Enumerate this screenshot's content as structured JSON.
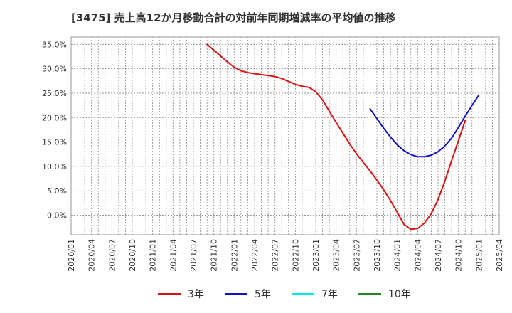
{
  "chart_data": {
    "type": "line",
    "title": "[3475]  売上高12か月移動合計の対前年同期増減率の平均値の推移",
    "xlabel": "",
    "ylabel": "",
    "ylim": [
      -4,
      36.5
    ],
    "xlim": [
      "2020/01",
      "2025/04"
    ],
    "y_ticks": [
      "35.0%",
      "30.0%",
      "25.0%",
      "20.0%",
      "15.0%",
      "10.0%",
      "5.0%",
      "0.0%"
    ],
    "y_tick_values": [
      35,
      30,
      25,
      20,
      15,
      10,
      5,
      0
    ],
    "x_ticks": [
      "2020/01",
      "2020/04",
      "2020/07",
      "2020/10",
      "2021/01",
      "2021/04",
      "2021/07",
      "2021/10",
      "2022/01",
      "2022/04",
      "2022/07",
      "2022/10",
      "2023/01",
      "2023/04",
      "2023/07",
      "2023/10",
      "2024/01",
      "2024/04",
      "2024/07",
      "2024/10",
      "2025/01",
      "2025/04"
    ],
    "grid": true,
    "legend_position": "bottom",
    "series": [
      {
        "name": "3年",
        "color": "#dd1111",
        "x": [
          "2021/09",
          "2021/10",
          "2021/11",
          "2021/12",
          "2022/01",
          "2022/02",
          "2022/03",
          "2022/04",
          "2022/05",
          "2022/06",
          "2022/07",
          "2022/08",
          "2022/09",
          "2022/10",
          "2022/11",
          "2022/12",
          "2023/01",
          "2023/02",
          "2023/03",
          "2023/04",
          "2023/05",
          "2023/06",
          "2023/07",
          "2023/08",
          "2023/09",
          "2023/10",
          "2023/11",
          "2023/12",
          "2024/01",
          "2024/02",
          "2024/03",
          "2024/04",
          "2024/05",
          "2024/06",
          "2024/07",
          "2024/08",
          "2024/09",
          "2024/10",
          "2024/11",
          "2024/12",
          "2025/01"
        ],
        "values": [
          35.0,
          33.8,
          32.6,
          31.4,
          30.3,
          29.6,
          29.2,
          29.0,
          28.8,
          28.6,
          28.4,
          28.0,
          27.4,
          26.8,
          26.4,
          26.2,
          25.3,
          23.6,
          21.3,
          19.0,
          16.8,
          14.6,
          12.6,
          10.8,
          9.1,
          7.2,
          5.2,
          3.0,
          0.6,
          -1.9,
          -2.9,
          -2.7,
          -1.6,
          0.3,
          3.2,
          7.0,
          11.2,
          15.3,
          19.4,
          null,
          null
        ],
        "values_note": ""
      },
      {
        "name": "5年",
        "color": "#1111cc",
        "x": [
          "2023/09",
          "2023/10",
          "2023/11",
          "2023/12",
          "2024/01",
          "2024/02",
          "2024/03",
          "2024/04",
          "2024/05",
          "2024/06",
          "2024/07",
          "2024/08",
          "2024/09",
          "2024/10",
          "2024/11",
          "2024/12",
          "2025/01"
        ],
        "values": [
          21.8,
          19.8,
          17.8,
          16.0,
          14.4,
          13.2,
          12.4,
          12.0,
          12.0,
          12.3,
          13.0,
          14.2,
          15.8,
          18.0,
          20.3,
          22.5,
          24.6
        ]
      },
      {
        "name": "7年",
        "color": "#00e5ee",
        "x": [],
        "values": []
      },
      {
        "name": "10年",
        "color": "#228822",
        "x": [],
        "values": []
      }
    ]
  }
}
